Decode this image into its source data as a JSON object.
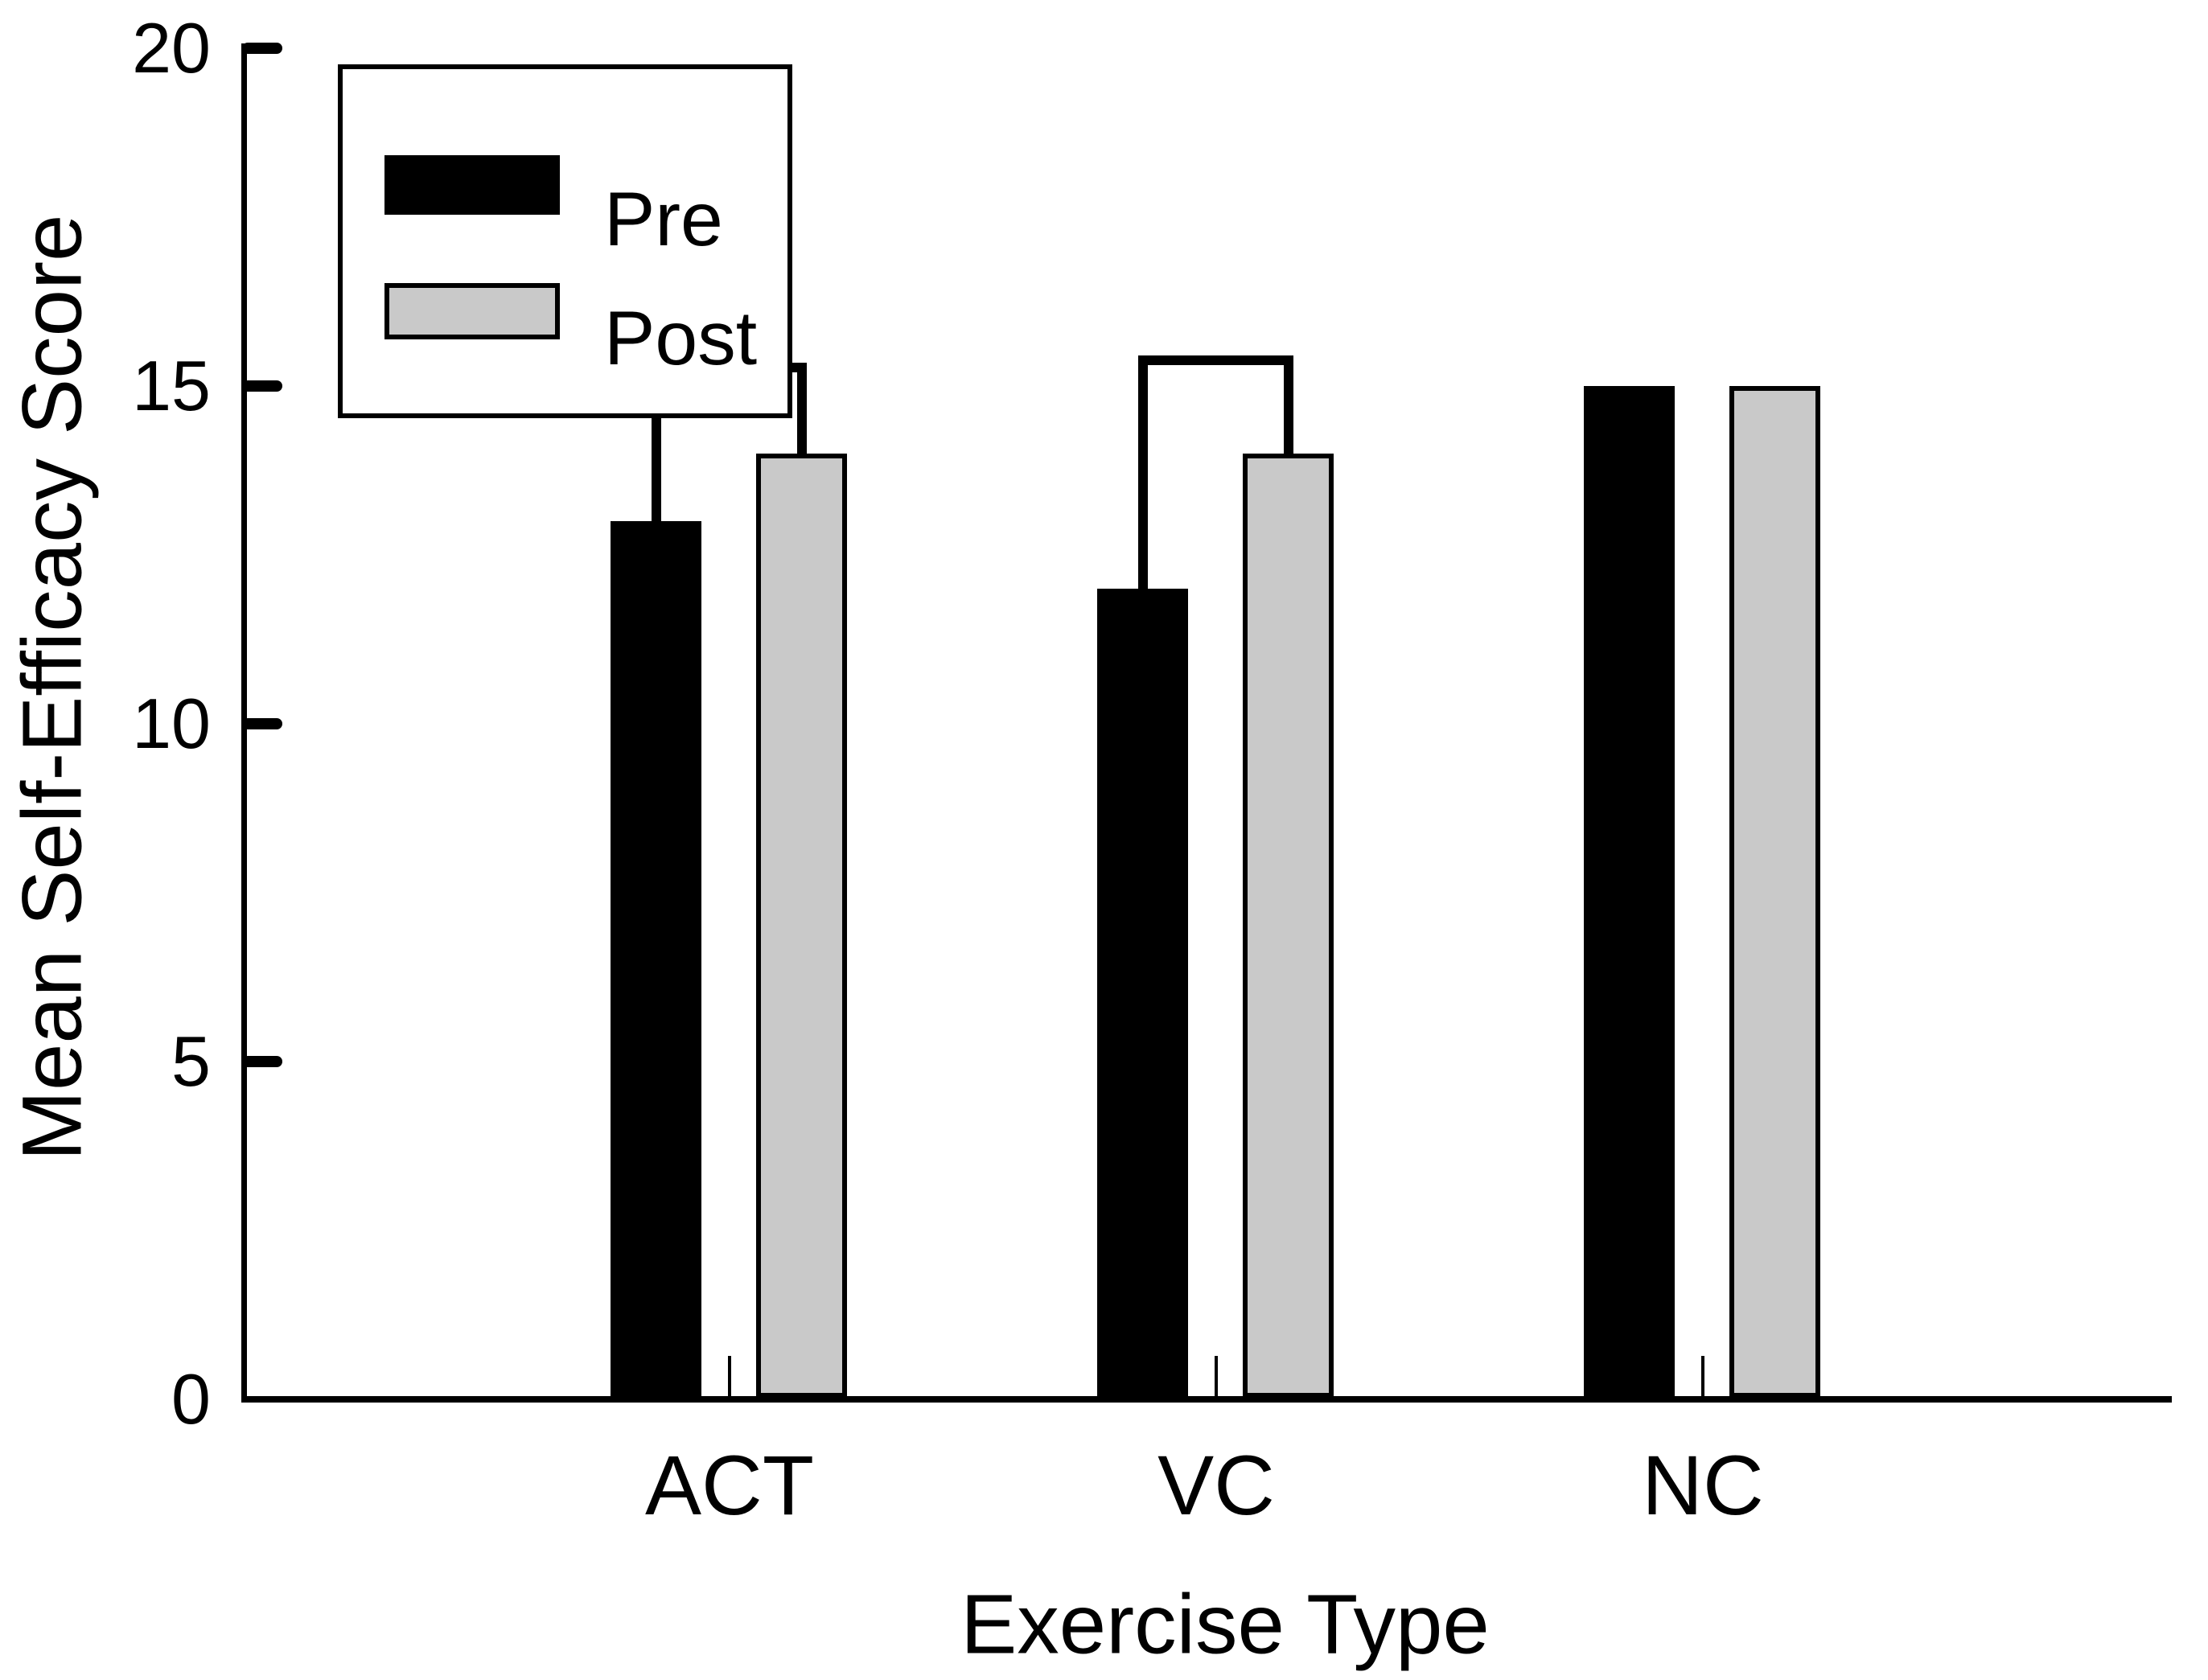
{
  "chart_data": {
    "type": "bar",
    "title": "",
    "categories": [
      "ACT",
      "VC",
      "NC"
    ],
    "series": [
      {
        "name": "Pre",
        "color": "#000000",
        "values": [
          13,
          12,
          15
        ]
      },
      {
        "name": "Post",
        "color": "#c9c9c9",
        "values": [
          14,
          14,
          15
        ]
      }
    ],
    "xlabel": "Exercise Type",
    "ylabel": "Mean Self-Efficacy Score",
    "ylim": [
      0,
      20
    ],
    "yticks": [
      0,
      5,
      10,
      15,
      20
    ],
    "ytick_labels": [
      "0",
      "5",
      "10",
      "15",
      "20"
    ],
    "grid": false,
    "legend_position": "top-left",
    "bar_border_color": "#000000",
    "axis_color": "#000000",
    "comparison_brackets": [
      {
        "category": "ACT",
        "between": [
          "Pre",
          "Post"
        ],
        "top_value": 15.35
      },
      {
        "category": "VC",
        "between": [
          "Pre",
          "Post"
        ],
        "top_value": 15.45
      }
    ]
  },
  "legend": {
    "items": [
      {
        "label": "Pre"
      },
      {
        "label": "Post"
      }
    ]
  }
}
